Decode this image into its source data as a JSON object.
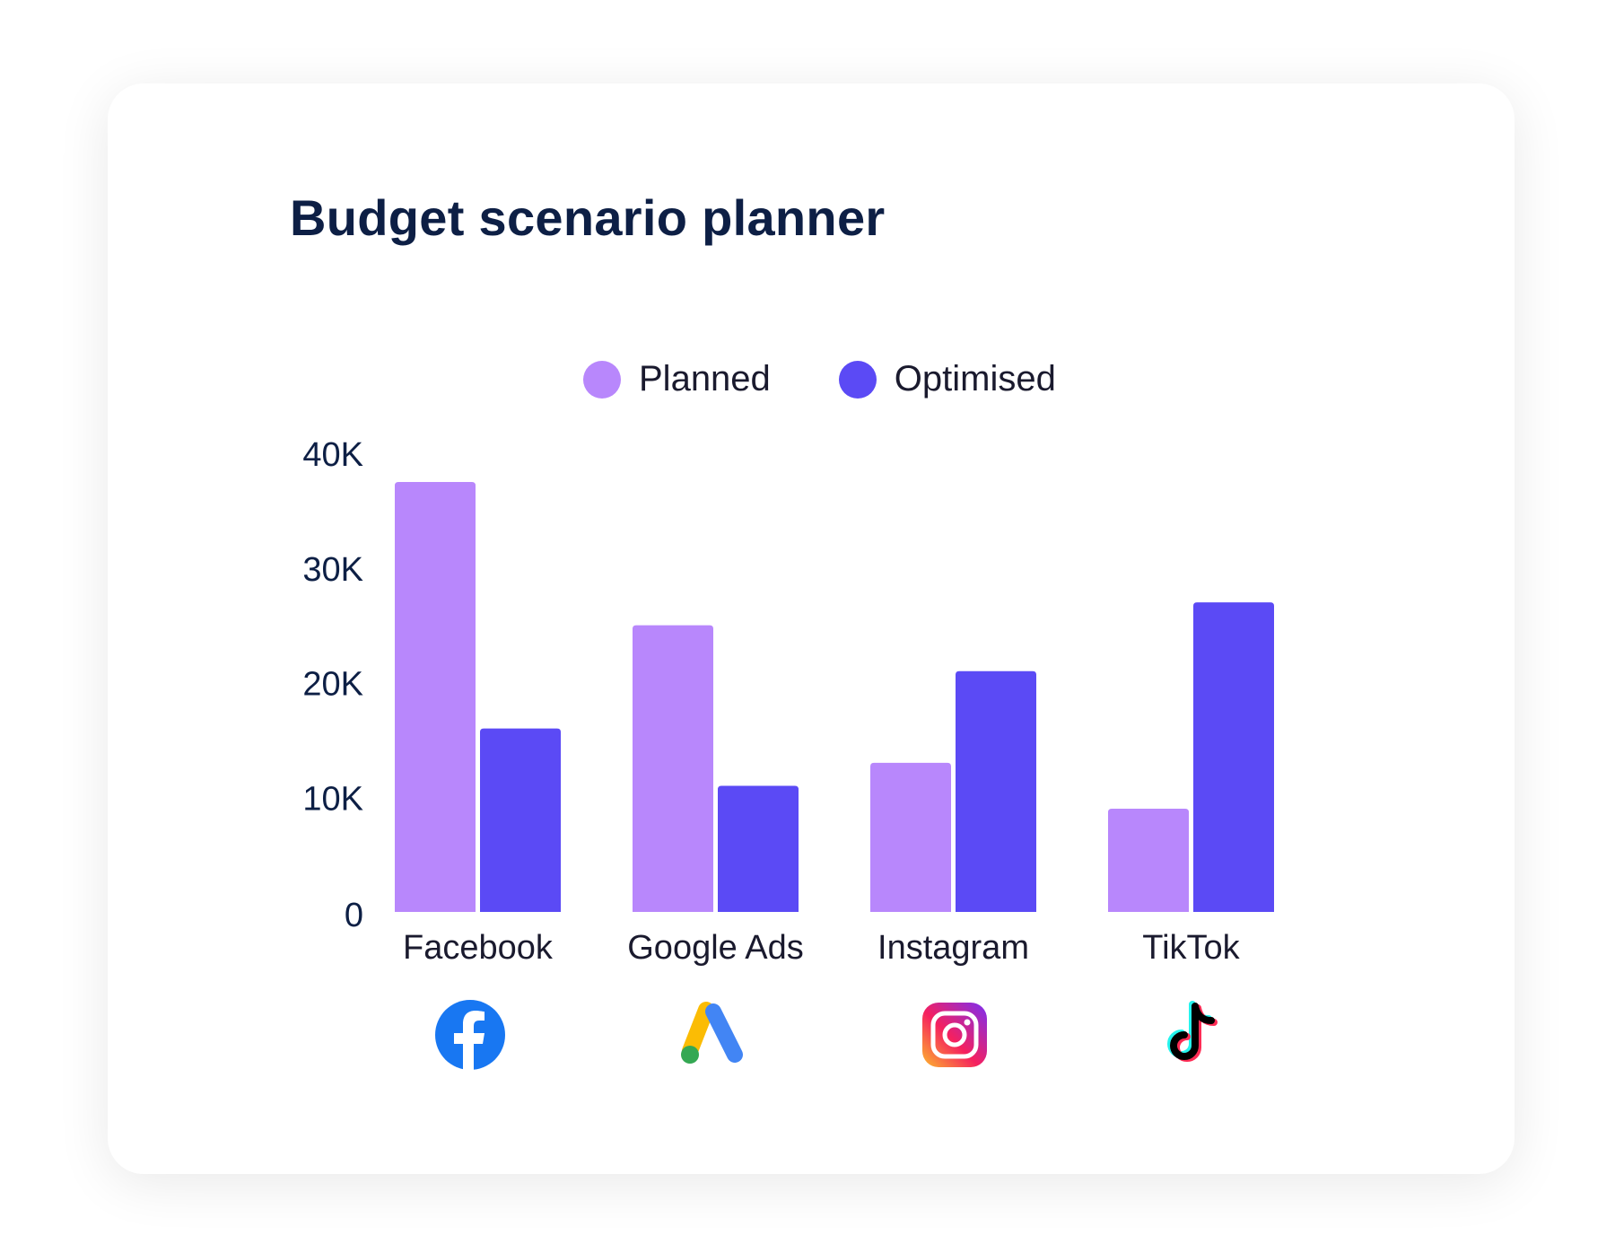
{
  "title": "Budget scenario planner",
  "colors": {
    "planned": "#b887fc",
    "optimised": "#5b4af5",
    "text": "#0d1f45"
  },
  "chart_data": {
    "type": "bar",
    "title": "Budget scenario planner",
    "categories": [
      "Facebook",
      "Google Ads",
      "Instagram",
      "TikTok"
    ],
    "series": [
      {
        "name": "Planned",
        "values": [
          37500,
          25000,
          13000,
          9000
        ]
      },
      {
        "name": "Optimised",
        "values": [
          16000,
          11000,
          21000,
          27000
        ]
      }
    ],
    "y_ticks": [
      0,
      10000,
      20000,
      30000,
      40000
    ],
    "y_tick_labels": [
      "0",
      "10K",
      "20K",
      "30K",
      "40K"
    ],
    "ylim": [
      0,
      40000
    ],
    "xlabel": "",
    "ylabel": "",
    "grid": false,
    "legend_position": "top-center"
  },
  "icons": [
    "facebook-icon",
    "google-ads-icon",
    "instagram-icon",
    "tiktok-icon"
  ]
}
